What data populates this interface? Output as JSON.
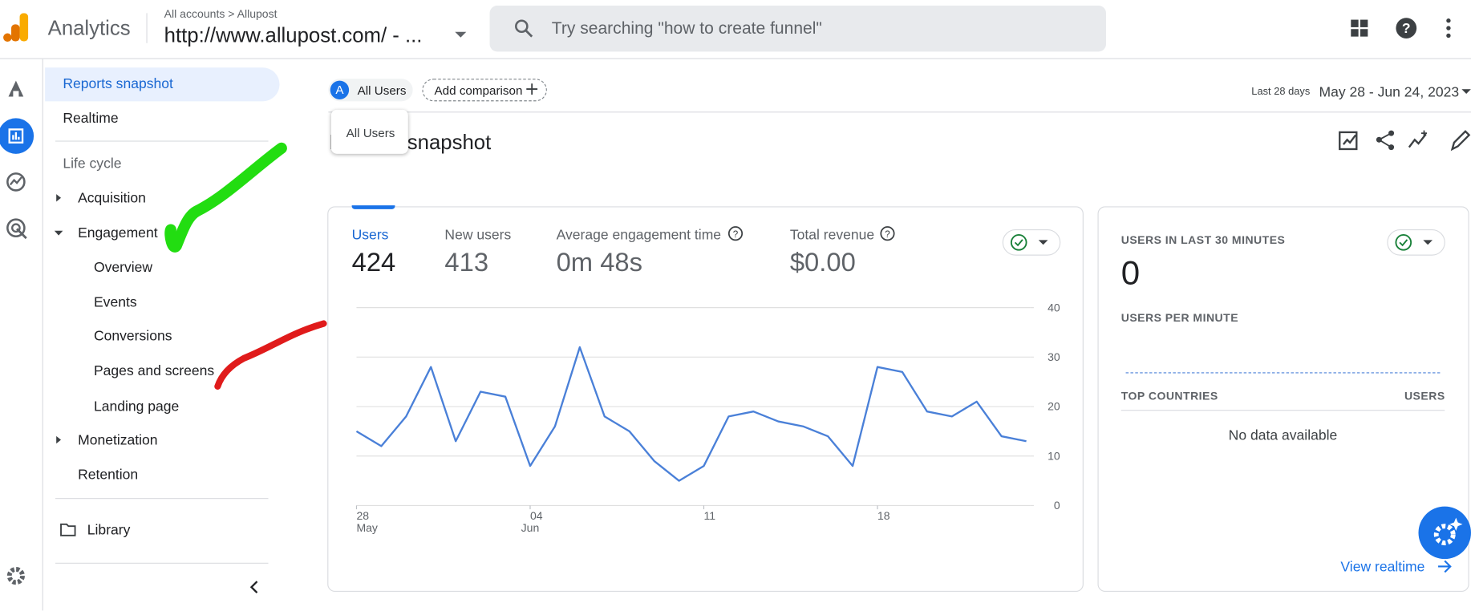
{
  "header": {
    "product": "Analytics",
    "breadcrumb": [
      "All accounts",
      "Allupost"
    ],
    "property": "http://www.allupost.com/ - ...",
    "search_placeholder": "Try searching \"how to create funnel\""
  },
  "nav": {
    "top": [
      "Reports snapshot",
      "Realtime"
    ],
    "section": "Life cycle",
    "tree": [
      {
        "label": "Acquisition"
      },
      {
        "label": "Engagement",
        "children": [
          "Overview",
          "Events",
          "Conversions",
          "Pages and screens",
          "Landing page"
        ]
      },
      {
        "label": "Monetization"
      },
      {
        "label": "Retention"
      }
    ],
    "library": "Library"
  },
  "comparison": {
    "badge": "A",
    "segment": "All Users",
    "add": "Add comparison",
    "tooltip": "All Users"
  },
  "date": {
    "label": "Last 28 days",
    "range": "May 28 - Jun 24, 2023"
  },
  "page_title": "Reports snapshot",
  "metrics": [
    {
      "label": "Users",
      "value": "424"
    },
    {
      "label": "New users",
      "value": "413"
    },
    {
      "label": "Average engagement time",
      "value": "0m 48s"
    },
    {
      "label": "Total revenue",
      "value": "$0.00"
    }
  ],
  "chart": {
    "type": "line",
    "color": "#4a80d8",
    "grid": true,
    "categories": [
      "28",
      null,
      null,
      null,
      null,
      null,
      null,
      "04",
      null,
      null,
      null,
      null,
      null,
      null,
      "11",
      null,
      null,
      null,
      null,
      null,
      null,
      "18",
      null,
      null,
      null,
      null,
      null,
      null
    ],
    "category_months": [
      "May",
      null,
      null,
      null,
      null,
      null,
      null,
      "Jun",
      null,
      null,
      null,
      null,
      null,
      null,
      null,
      null,
      null,
      null,
      null,
      null,
      null,
      null,
      null,
      null,
      null,
      null,
      null,
      null
    ],
    "values": [
      15,
      12,
      18,
      28,
      13,
      23,
      22,
      8,
      16,
      32,
      18,
      15,
      9,
      5,
      8,
      18,
      19,
      17,
      16,
      14,
      8,
      28,
      27,
      19,
      18,
      21,
      14,
      13
    ],
    "ylim": [
      0,
      40
    ],
    "yticks": [
      0,
      10,
      20,
      30,
      40
    ]
  },
  "realtime": {
    "title": "USERS IN LAST 30 MINUTES",
    "value": "0",
    "subtitle": "USERS PER MINUTE",
    "table_headers": [
      "TOP COUNTRIES",
      "USERS"
    ],
    "empty": "No data available",
    "link": "View realtime"
  }
}
